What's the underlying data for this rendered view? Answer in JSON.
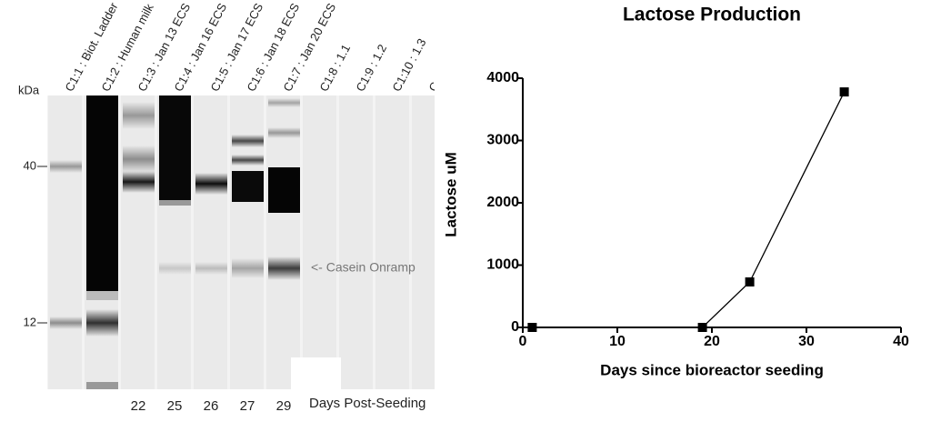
{
  "gel": {
    "unit_label": "kDa",
    "markers": [
      40,
      12
    ],
    "lanes": [
      "C1:1 : Biot. Ladder",
      "C1:2 : Human milk",
      "C1:3 : Jan 13 ECS",
      "C1:4 : Jan 16 ECS",
      "C1:5 : Jan 17 ECS",
      "C1:6 : Jan 18 ECS",
      "C1:7 : Jan 20 ECS",
      "C1:8 : 1.1",
      "C1:9 : 1.2",
      "C1:10 : 1.3",
      "C"
    ],
    "annotation": "<- Casein Onramp",
    "days": [
      22,
      25,
      26,
      27,
      29
    ],
    "days_label": "Days Post-Seeding"
  },
  "chart_data": {
    "type": "line",
    "title": "Lactose Production",
    "x_label": "Days since bioreactor seeding",
    "y_label": "Lactose uM",
    "x": [
      1,
      19,
      24,
      34
    ],
    "values": [
      0,
      0,
      730,
      3780
    ],
    "color": "#000000",
    "xlim": [
      0,
      40
    ],
    "xticks": [
      0,
      10,
      20,
      30,
      40
    ],
    "ylim": [
      0,
      4000
    ],
    "yticks": [
      0,
      1000,
      2000,
      3000,
      4000
    ]
  }
}
